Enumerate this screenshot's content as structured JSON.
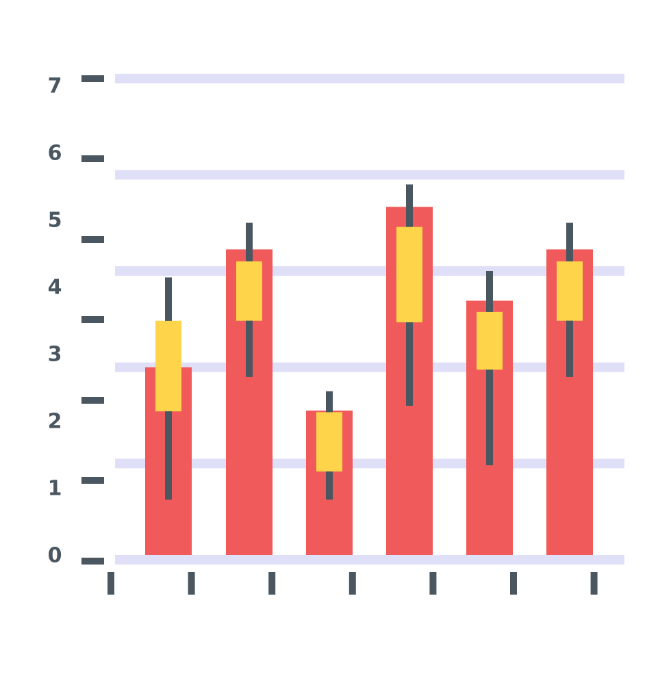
{
  "colors": {
    "background": "#ffffff",
    "gridline": "#dfe0f8",
    "bar": "#f05a5a",
    "candle_body": "#fdd44a",
    "wick": "#4a5660",
    "axis_ink": "#4a5660"
  },
  "chart_data": {
    "type": "bar",
    "title": "",
    "xlabel": "",
    "ylabel": "",
    "ylim": [
      0,
      7
    ],
    "y_tick_labels": [
      "0",
      "1",
      "2",
      "3",
      "4",
      "5",
      "6",
      "7"
    ],
    "gridlines": [
      0,
      1.2,
      2.4,
      3.6,
      4.8,
      6.0,
      7.2
    ],
    "categories": [
      "",
      "",
      "",
      "",
      "",
      ""
    ],
    "series": [
      {
        "values": [
          2.4,
          3.87,
          1.86,
          4.4,
          3.23,
          3.87
        ]
      }
    ],
    "candles": [
      {
        "low": 0.75,
        "body_low": 1.85,
        "body_high": 2.98,
        "high": 3.52
      },
      {
        "low": 2.28,
        "body_low": 2.98,
        "body_high": 3.72,
        "high": 4.2
      },
      {
        "low": 0.75,
        "body_low": 1.1,
        "body_high": 1.84,
        "high": 2.1
      },
      {
        "low": 1.92,
        "body_low": 2.96,
        "body_high": 4.15,
        "high": 4.68
      },
      {
        "low": 1.18,
        "body_low": 2.37,
        "body_high": 3.09,
        "high": 3.6
      },
      {
        "low": 2.28,
        "body_low": 2.98,
        "body_high": 3.72,
        "high": 4.2
      }
    ],
    "x_ticks": 7,
    "grid": true,
    "legend": "none"
  }
}
